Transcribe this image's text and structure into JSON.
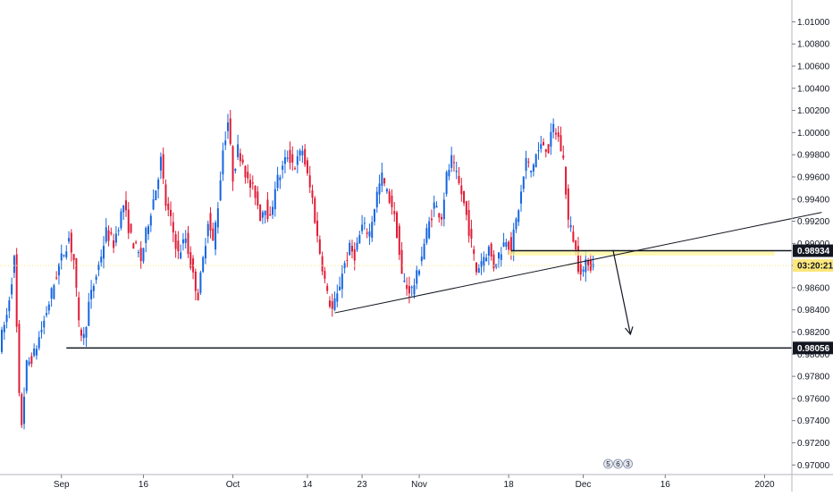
{
  "chart_data": {
    "type": "candlestick",
    "title": "",
    "xlabel": "",
    "ylabel": "",
    "ylim": [
      0.9697,
      1.011
    ],
    "y_ticks": [
      "1.01000",
      "1.00800",
      "1.00600",
      "1.00400",
      "1.00200",
      "1.00000",
      "0.99800",
      "0.99600",
      "0.99400",
      "0.99200",
      "0.99000",
      "0.98800",
      "0.98600",
      "0.98400",
      "0.98200",
      "0.98000",
      "0.97800",
      "0.97600",
      "0.97400",
      "0.97200",
      "0.97000"
    ],
    "y_tick_values": [
      1.01,
      1.008,
      1.006,
      1.004,
      1.002,
      1.0,
      0.998,
      0.996,
      0.994,
      0.992,
      0.99,
      0.988,
      0.986,
      0.984,
      0.982,
      0.98,
      0.978,
      0.976,
      0.974,
      0.972,
      0.97
    ],
    "x_ticks": [
      {
        "label": "Sep",
        "index": 24
      },
      {
        "label": "16",
        "index": 57
      },
      {
        "label": "Oct",
        "index": 93
      },
      {
        "label": "14",
        "index": 123
      },
      {
        "label": "23",
        "index": 145
      },
      {
        "label": "Nov",
        "index": 168
      },
      {
        "label": "18",
        "index": 204
      },
      {
        "label": "Dec",
        "index": 234
      },
      {
        "label": "16",
        "index": 267
      },
      {
        "label": "2020",
        "index": 307
      }
    ],
    "colors": {
      "up": "#1565e0",
      "down": "#e01b35",
      "line": "#131722",
      "zone": "#fff59a",
      "price": "#fbe77a"
    },
    "price_path": [
      [
        0,
        0.9808
      ],
      [
        3,
        0.9835
      ],
      [
        6,
        0.9885
      ],
      [
        8,
        0.976
      ],
      [
        9,
        0.9738
      ],
      [
        11,
        0.979
      ],
      [
        14,
        0.98
      ],
      [
        18,
        0.983
      ],
      [
        21,
        0.9855
      ],
      [
        24,
        0.988
      ],
      [
        28,
        0.9905
      ],
      [
        30,
        0.9885
      ],
      [
        32,
        0.9825
      ],
      [
        34,
        0.9815
      ],
      [
        36,
        0.9845
      ],
      [
        40,
        0.988
      ],
      [
        43,
        0.991
      ],
      [
        46,
        0.99
      ],
      [
        50,
        0.9935
      ],
      [
        53,
        0.9905
      ],
      [
        57,
        0.9885
      ],
      [
        60,
        0.992
      ],
      [
        63,
        0.995
      ],
      [
        65,
        0.9975
      ],
      [
        67,
        0.9935
      ],
      [
        69,
        0.992
      ],
      [
        72,
        0.989
      ],
      [
        75,
        0.9905
      ],
      [
        78,
        0.987
      ],
      [
        80,
        0.9853
      ],
      [
        82,
        0.9885
      ],
      [
        84,
        0.9922
      ],
      [
        86,
        0.99
      ],
      [
        88,
        0.9935
      ],
      [
        90,
        0.9985
      ],
      [
        92,
        1.001
      ],
      [
        94,
        0.996
      ],
      [
        96,
        0.9985
      ],
      [
        98,
        0.9975
      ],
      [
        100,
        0.9955
      ],
      [
        103,
        0.9945
      ],
      [
        105,
        0.9925
      ],
      [
        107,
        0.9935
      ],
      [
        109,
        0.992
      ],
      [
        111,
        0.9953
      ],
      [
        113,
        0.9962
      ],
      [
        116,
        0.998
      ],
      [
        119,
        0.997
      ],
      [
        122,
        0.9985
      ],
      [
        124,
        0.996
      ],
      [
        126,
        0.994
      ],
      [
        128,
        0.9905
      ],
      [
        130,
        0.988
      ],
      [
        132,
        0.9853
      ],
      [
        134,
        0.984
      ],
      [
        136,
        0.9852
      ],
      [
        138,
        0.9875
      ],
      [
        141,
        0.9895
      ],
      [
        143,
        0.989
      ],
      [
        146,
        0.9915
      ],
      [
        149,
        0.991
      ],
      [
        152,
        0.9945
      ],
      [
        154,
        0.996
      ],
      [
        156,
        0.9945
      ],
      [
        158,
        0.9935
      ],
      [
        160,
        0.991
      ],
      [
        162,
        0.987
      ],
      [
        164,
        0.986
      ],
      [
        166,
        0.9858
      ],
      [
        168,
        0.987
      ],
      [
        170,
        0.989
      ],
      [
        172,
        0.991
      ],
      [
        175,
        0.9935
      ],
      [
        178,
        0.9925
      ],
      [
        180,
        0.996
      ],
      [
        182,
        0.9975
      ],
      [
        184,
        0.996
      ],
      [
        186,
        0.9945
      ],
      [
        188,
        0.9925
      ],
      [
        190,
        0.99
      ],
      [
        192,
        0.9875
      ],
      [
        194,
        0.9885
      ],
      [
        197,
        0.9895
      ],
      [
        199,
        0.988
      ],
      [
        201,
        0.989
      ],
      [
        204,
        0.9905
      ],
      [
        206,
        0.9895
      ],
      [
        208,
        0.992
      ],
      [
        210,
        0.9945
      ],
      [
        212,
        0.9975
      ],
      [
        214,
        0.9965
      ],
      [
        216,
        0.998
      ],
      [
        219,
        0.999
      ],
      [
        221,
        0.9985
      ],
      [
        223,
        1.0005
      ],
      [
        225,
        0.9995
      ],
      [
        227,
        0.9975
      ],
      [
        229,
        0.992
      ],
      [
        231,
        0.9905
      ],
      [
        233,
        0.988
      ],
      [
        235,
        0.9875
      ],
      [
        237,
        0.9885
      ],
      [
        238,
        0.988
      ]
    ],
    "levels": [
      {
        "name": "support",
        "value": 0.98056,
        "label": "0.98056",
        "from_index": 26
      },
      {
        "name": "resistance",
        "value": 0.98934,
        "label": "0.98934",
        "from_index": 205
      }
    ],
    "current_price": {
      "value": 0.988,
      "countdown": "03:20:21"
    },
    "trendlines": [
      {
        "name": "rising-trendline",
        "from": [
          134,
          0.98373
        ],
        "to": [
          330,
          0.9928
        ]
      }
    ],
    "zone": {
      "from_index": 204,
      "to_index": 311,
      "top": 0.98934,
      "bottom": 0.9889
    },
    "arrow": {
      "from": [
        246,
        0.9894
      ],
      "to": [
        253,
        0.9818
      ]
    },
    "calendar": {
      "date_label": "5",
      "items": [
        "5",
        "6",
        "3"
      ]
    }
  }
}
